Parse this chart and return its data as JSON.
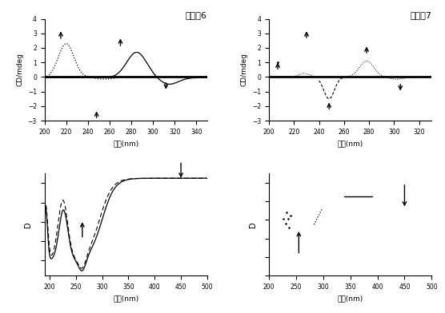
{
  "title1": "配合物6",
  "title2": "配合物7",
  "xlabel_cn": "波长(nm)",
  "ylabel_cd": "CD/mdeg",
  "ylabel_uv": "D",
  "bg_color": "#ffffff",
  "subplot1": {
    "xlim": [
      200,
      350
    ],
    "ylim": [
      -3,
      4
    ],
    "yticks": [
      -3,
      -2,
      -1,
      0,
      1,
      2,
      3,
      4
    ],
    "xticks": [
      200,
      220,
      240,
      260,
      280,
      300,
      320,
      340
    ]
  },
  "subplot2": {
    "xlim": [
      200,
      330
    ],
    "ylim": [
      -3,
      4
    ],
    "yticks": [
      -3,
      -2,
      -1,
      0,
      1,
      2,
      3,
      4
    ],
    "xticks": [
      200,
      220,
      240,
      260,
      280,
      300,
      320
    ]
  },
  "subplot3": {
    "xlim": [
      190,
      500
    ],
    "xticks": [
      200,
      250,
      300,
      350,
      400,
      450,
      500
    ]
  },
  "subplot4": {
    "xlim": [
      200,
      500
    ],
    "xticks": [
      200,
      250,
      300,
      350,
      400,
      450,
      500
    ]
  }
}
